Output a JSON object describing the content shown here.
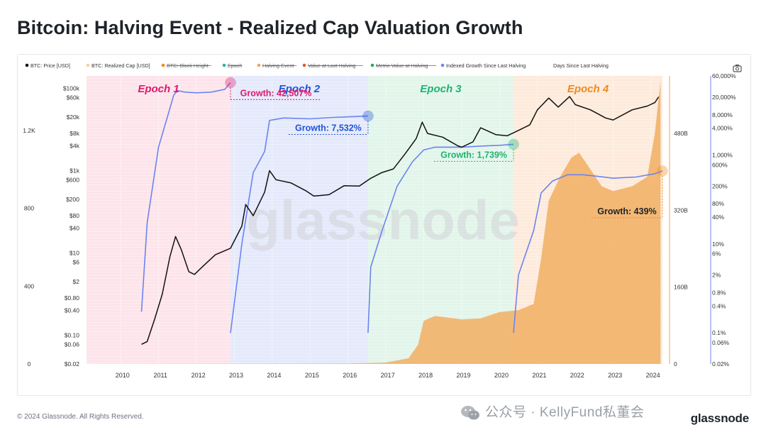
{
  "title": "Bitcoin: Halving Event - Realized Cap Valuation Growth",
  "footer": {
    "copyright": "© 2024 Glassnode. All Rights Reserved.",
    "brand": "glassnode",
    "overlay_text": "公众号 · KellyFund私董会",
    "chart_watermark": "glassnode"
  },
  "camera_icon": "camera-icon",
  "colors": {
    "price": "#111111",
    "realized_cap_fill": "#f2b36b",
    "growth_line": "#6b84f0",
    "epoch1": "#e0186c",
    "epoch2": "#1f55d6",
    "epoch3": "#1fb371",
    "epoch4": "#ef8a1c"
  },
  "chart_data": {
    "type": "line",
    "title": "Bitcoin: Halving Event - Realized Cap Valuation Growth",
    "legend": {
      "position": "top-left",
      "items": [
        {
          "label": "BTC: Price [USD]",
          "color": "#111111",
          "strike": false
        },
        {
          "label": "BTC: Realized Cap [USD]",
          "color": "#f7cf9c",
          "strike": false
        },
        {
          "label": "BTC: Block Height",
          "color": "#ef8a1c",
          "strike": true
        },
        {
          "label": "Epoch",
          "color": "#2bb5a0",
          "strike": true
        },
        {
          "label": "Halving Event",
          "color": "#f2a45b",
          "strike": true
        },
        {
          "label": "Value at Last Halving",
          "color": "#e4572e",
          "strike": true
        },
        {
          "label": "Metric Value at Halving",
          "color": "#2aa84a",
          "strike": true
        },
        {
          "label": "Indexed Growth Since Last Halving",
          "color": "#6b84f0",
          "strike": false
        },
        {
          "label": "Days Since Last Halving",
          "color": "#ffffff",
          "strike": false
        }
      ]
    },
    "x_axis": {
      "ticks": [
        "2010",
        "2011",
        "2012",
        "2013",
        "2014",
        "2015",
        "2016",
        "2017",
        "2018",
        "2019",
        "2020",
        "2021",
        "2022",
        "2023",
        "2024"
      ],
      "range": [
        2009.1,
        2024.45
      ]
    },
    "y_axis_price": {
      "scale": "log",
      "range": [
        0.02,
        200000
      ],
      "ticks": [
        "$100k",
        "$60k",
        "$20k",
        "$8k",
        "$4k",
        "$1k",
        "$600",
        "$200",
        "$80",
        "$40",
        "$10",
        "$6",
        "$2",
        "$0.80",
        "$0.40",
        "$0.10",
        "$0.06",
        "$0.02"
      ]
    },
    "y_axis_days": {
      "ticks": [
        "1.2K",
        "800",
        "400",
        "0"
      ]
    },
    "y_axis_realized_cap": {
      "range": [
        0,
        600
      ],
      "unit": "B",
      "ticks": [
        "480B",
        "320B",
        "160B",
        "0"
      ]
    },
    "y_axis_growth": {
      "scale": "log",
      "range": [
        0.02,
        60000
      ],
      "ticks": [
        "60,000%",
        "20,000%",
        "8,000%",
        "4,000%",
        "1,000%",
        "600%",
        "200%",
        "80%",
        "40%",
        "10%",
        "6%",
        "2%",
        "0.8%",
        "0.4%",
        "0.1%",
        "0.06%",
        "0.02%"
      ]
    },
    "epochs": [
      {
        "name": "Epoch 1",
        "start": 2009.1,
        "end": 2012.9,
        "growth_label": "Growth: 42,507%",
        "growth_pct": 42507
      },
      {
        "name": "Epoch 2",
        "start": 2012.9,
        "end": 2016.53,
        "growth_label": "Growth: 7,532%",
        "growth_pct": 7532
      },
      {
        "name": "Epoch 3",
        "start": 2016.53,
        "end": 2020.37,
        "growth_label": "Growth: 1,739%",
        "growth_pct": 1739
      },
      {
        "name": "Epoch 4",
        "start": 2020.37,
        "end": 2024.3,
        "growth_label": "Growth: 439%",
        "growth_pct": 439
      }
    ],
    "series": [
      {
        "name": "BTC: Price [USD]",
        "x": [
          2010.55,
          2010.7,
          2010.9,
          2011.1,
          2011.3,
          2011.45,
          2011.6,
          2011.8,
          2011.95,
          2012.2,
          2012.5,
          2012.9,
          2013.2,
          2013.3,
          2013.5,
          2013.8,
          2013.93,
          2014.1,
          2014.5,
          2014.9,
          2015.1,
          2015.5,
          2015.9,
          2016.3,
          2016.6,
          2016.9,
          2017.2,
          2017.5,
          2017.8,
          2017.96,
          2018.1,
          2018.5,
          2018.9,
          2019.0,
          2019.3,
          2019.5,
          2019.9,
          2020.2,
          2020.5,
          2020.8,
          2021.0,
          2021.3,
          2021.55,
          2021.85,
          2022.0,
          2022.4,
          2022.8,
          2023.0,
          2023.5,
          2023.9,
          2024.1,
          2024.2
        ],
        "values": [
          0.06,
          0.07,
          0.25,
          1,
          8,
          25,
          12,
          3.5,
          3,
          5,
          9,
          13,
          45,
          150,
          80,
          300,
          1000,
          600,
          500,
          320,
          240,
          260,
          430,
          420,
          650,
          900,
          1100,
          2500,
          6000,
          15000,
          8000,
          6500,
          4000,
          3700,
          5000,
          11000,
          7500,
          7000,
          9500,
          13000,
          30000,
          58000,
          35000,
          63000,
          40000,
          30000,
          19000,
          17000,
          30000,
          37000,
          45000,
          62000
        ]
      },
      {
        "name": "BTC: Realized Cap [USD]",
        "x": [
          2009.1,
          2016.0,
          2017.0,
          2017.6,
          2017.85,
          2018.0,
          2018.3,
          2019.0,
          2019.5,
          2020.0,
          2020.5,
          2020.9,
          2021.1,
          2021.3,
          2021.6,
          2021.9,
          2022.1,
          2022.4,
          2022.7,
          2023.0,
          2023.5,
          2023.9,
          2024.1,
          2024.25
        ],
        "values": [
          0,
          1,
          3,
          12,
          40,
          90,
          100,
          93,
          95,
          108,
          112,
          125,
          220,
          340,
          390,
          430,
          440,
          405,
          370,
          360,
          370,
          390,
          480,
          590
        ]
      },
      {
        "name": "Indexed Growth Since Last Halving",
        "segments": [
          {
            "x": [
              2010.55,
              2010.7,
              2011.0,
              2011.25,
              2011.4,
              2011.5,
              2011.7,
              2012.0,
              2012.4,
              2012.75,
              2012.9
            ],
            "values": [
              0.3,
              30,
              1500,
              8000,
              22000,
              28000,
              26000,
              25000,
              26000,
              30000,
              42507
            ]
          },
          {
            "x": [
              2012.9,
              2013.2,
              2013.5,
              2013.8,
              2013.93,
              2014.3,
              2015.0,
              2015.6,
              2016.0,
              2016.53
            ],
            "values": [
              0.1,
              10,
              400,
              1200,
              6000,
              6800,
              6500,
              7000,
              7200,
              7532
            ]
          },
          {
            "x": [
              2016.53,
              2016.6,
              2016.9,
              2017.3,
              2017.7,
              2018.0,
              2018.3,
              2019.0,
              2019.6,
              2020.0,
              2020.37
            ],
            "values": [
              0.1,
              3,
              20,
              200,
              700,
              1300,
              1500,
              1500,
              1600,
              1650,
              1739
            ]
          },
          {
            "x": [
              2020.37,
              2020.5,
              2020.9,
              2021.1,
              2021.4,
              2021.8,
              2022.2,
              2022.6,
              2023.0,
              2023.6,
              2024.1,
              2024.3
            ],
            "values": [
              0.1,
              2,
              20,
              140,
              260,
              360,
              360,
              330,
              300,
              320,
              380,
              439
            ]
          }
        ]
      }
    ]
  }
}
